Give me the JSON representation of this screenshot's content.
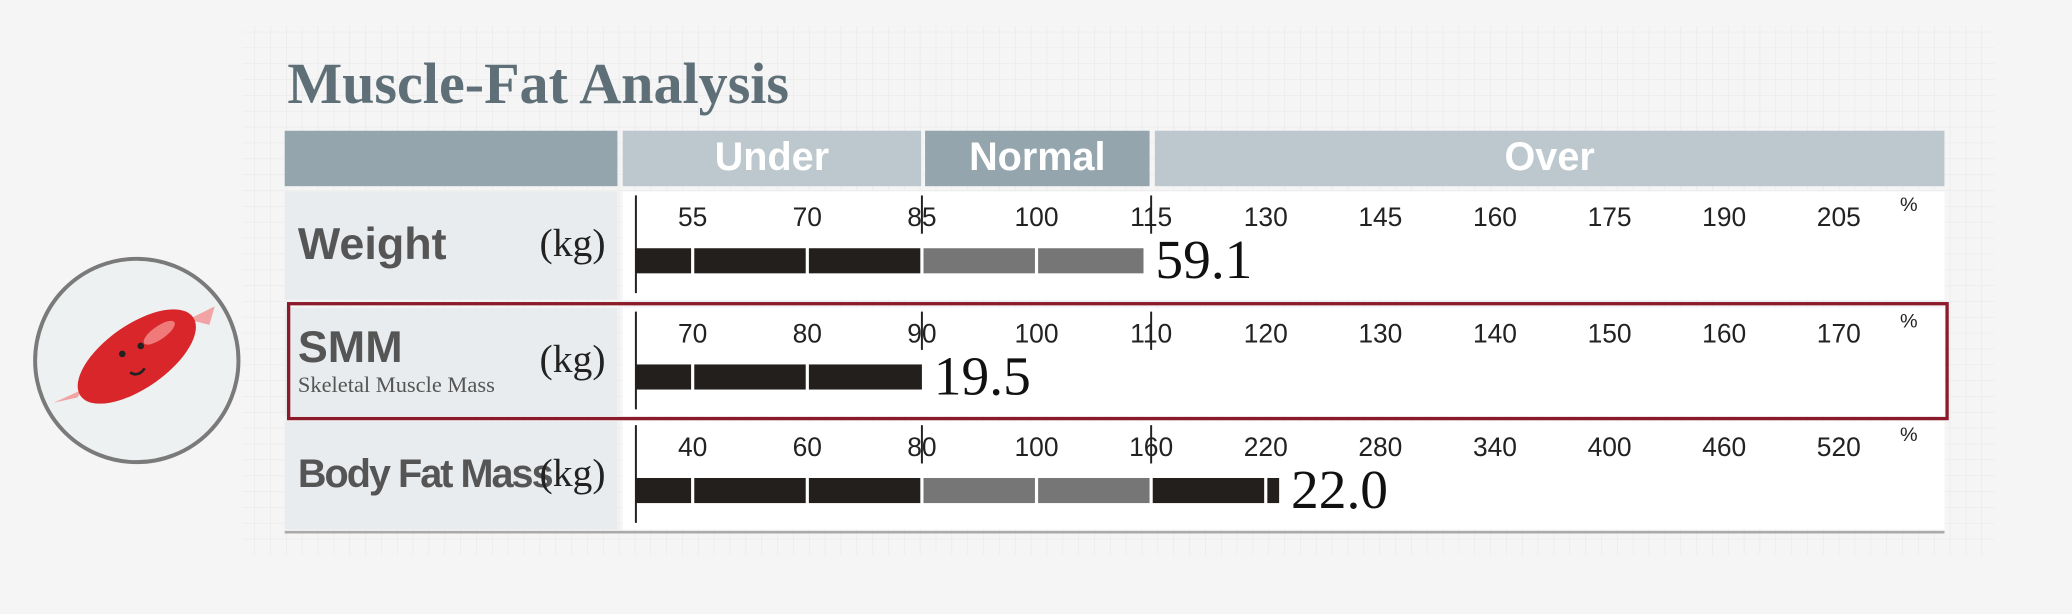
{
  "title": "Muscle-Fat Analysis",
  "header": [
    "Under",
    "Normal",
    "Over"
  ],
  "rows": [
    {
      "label": "Weight",
      "unit": "(kg)",
      "ticks": [
        55,
        70,
        85,
        100,
        115,
        130,
        145,
        160,
        175,
        190,
        205
      ],
      "tick_unit": "%",
      "percent": 114,
      "value": 59.1
    },
    {
      "label": "SMM",
      "sublabel": "Skeletal Muscle Mass",
      "unit": "(kg)",
      "ticks": [
        70,
        80,
        90,
        100,
        110,
        120,
        130,
        140,
        150,
        160,
        170
      ],
      "tick_unit": "%",
      "percent": 90,
      "value": 19.5,
      "highlight": true
    },
    {
      "label": "Body Fat Mass",
      "unit": "(kg)",
      "ticks": [
        40,
        60,
        80,
        100,
        160,
        220,
        280,
        340,
        400,
        460,
        520
      ],
      "tick_unit": "%",
      "percent": 227,
      "value": 22.0,
      "value_label": "22.0"
    }
  ]
}
